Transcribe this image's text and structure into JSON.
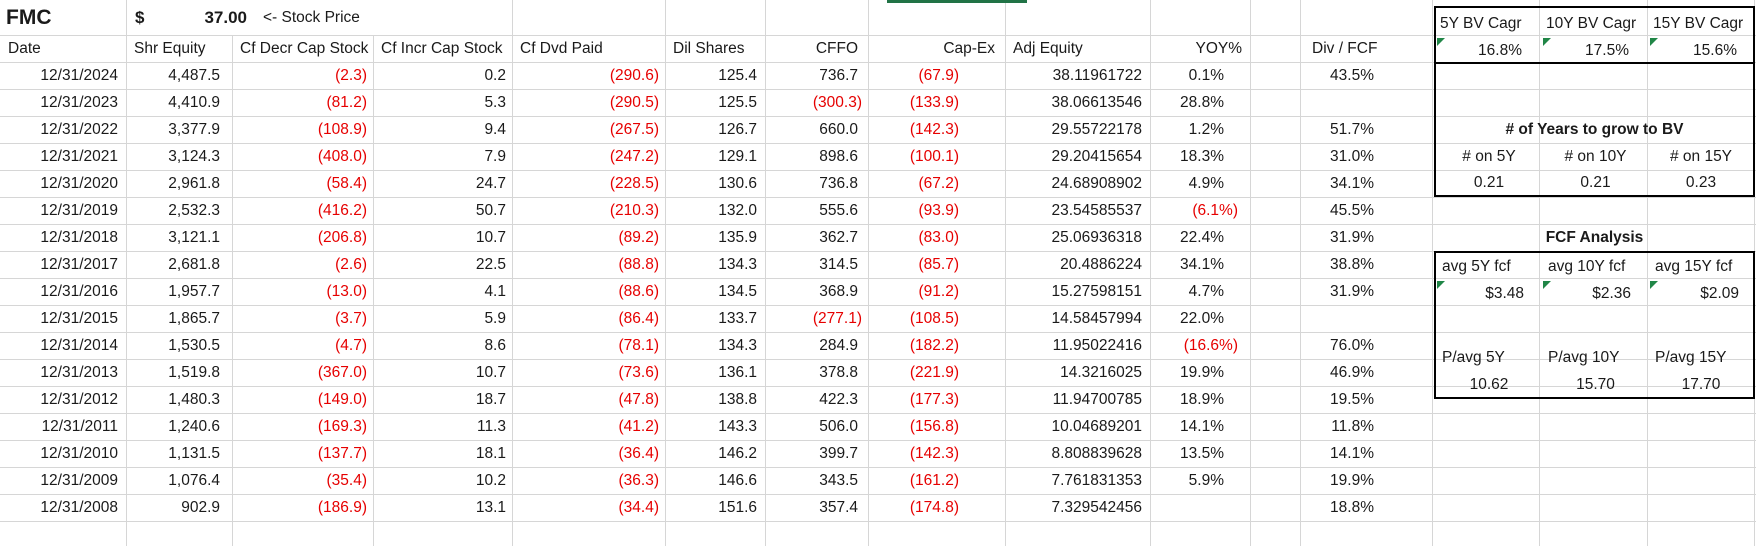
{
  "price_row": {
    "ticker": "FMC",
    "currency_symbol": "$",
    "price": "37.00",
    "note": "<- Stock Price"
  },
  "table": {
    "columns": [
      "Date",
      "Shr Equity",
      "Cf Decr Cap Stock",
      "Cf Incr Cap Stock",
      "Cf Dvd Paid",
      "Dil Shares",
      "CFFO",
      "Cap-Ex",
      "Adj Equity",
      "YOY%",
      "Div / FCF"
    ],
    "rows": [
      [
        "12/31/2024",
        "4,487.5",
        "(2.3)",
        "0.2",
        "(290.6)",
        "125.4",
        "736.7",
        "(67.9)",
        "38.11961722",
        "0.1%",
        "43.5%"
      ],
      [
        "12/31/2023",
        "4,410.9",
        "(81.2)",
        "5.3",
        "(290.5)",
        "125.5",
        "(300.3)",
        "(133.9)",
        "38.06613546",
        "28.8%",
        ""
      ],
      [
        "12/31/2022",
        "3,377.9",
        "(108.9)",
        "9.4",
        "(267.5)",
        "126.7",
        "660.0",
        "(142.3)",
        "29.55722178",
        "1.2%",
        "51.7%"
      ],
      [
        "12/31/2021",
        "3,124.3",
        "(408.0)",
        "7.9",
        "(247.2)",
        "129.1",
        "898.6",
        "(100.1)",
        "29.20415654",
        "18.3%",
        "31.0%"
      ],
      [
        "12/31/2020",
        "2,961.8",
        "(58.4)",
        "24.7",
        "(228.5)",
        "130.6",
        "736.8",
        "(67.2)",
        "24.68908902",
        "4.9%",
        "34.1%"
      ],
      [
        "12/31/2019",
        "2,532.3",
        "(416.2)",
        "50.7",
        "(210.3)",
        "132.0",
        "555.6",
        "(93.9)",
        "23.54585537",
        "(6.1%)",
        "45.5%"
      ],
      [
        "12/31/2018",
        "3,121.1",
        "(206.8)",
        "10.7",
        "(89.2)",
        "135.9",
        "362.7",
        "(83.0)",
        "25.06936318",
        "22.4%",
        "31.9%"
      ],
      [
        "12/31/2017",
        "2,681.8",
        "(2.6)",
        "22.5",
        "(88.8)",
        "134.3",
        "314.5",
        "(85.7)",
        "20.4886224",
        "34.1%",
        "38.8%"
      ],
      [
        "12/31/2016",
        "1,957.7",
        "(13.0)",
        "4.1",
        "(88.6)",
        "134.5",
        "368.9",
        "(91.2)",
        "15.27598151",
        "4.7%",
        "31.9%"
      ],
      [
        "12/31/2015",
        "1,865.7",
        "(3.7)",
        "5.9",
        "(86.4)",
        "133.7",
        "(277.1)",
        "(108.5)",
        "14.58457994",
        "22.0%",
        ""
      ],
      [
        "12/31/2014",
        "1,530.5",
        "(4.7)",
        "8.6",
        "(78.1)",
        "134.3",
        "284.9",
        "(182.2)",
        "11.95022416",
        "(16.6%)",
        "76.0%"
      ],
      [
        "12/31/2013",
        "1,519.8",
        "(367.0)",
        "10.7",
        "(73.6)",
        "136.1",
        "378.8",
        "(221.9)",
        "14.3216025",
        "19.9%",
        "46.9%"
      ],
      [
        "12/31/2012",
        "1,480.3",
        "(149.0)",
        "18.7",
        "(47.8)",
        "138.8",
        "422.3",
        "(177.3)",
        "11.94700785",
        "18.9%",
        "19.5%"
      ],
      [
        "12/31/2011",
        "1,240.6",
        "(169.3)",
        "11.3",
        "(41.2)",
        "143.3",
        "506.0",
        "(156.8)",
        "10.04689201",
        "14.1%",
        "11.8%"
      ],
      [
        "12/31/2010",
        "1,131.5",
        "(137.7)",
        "18.1",
        "(36.4)",
        "146.2",
        "399.7",
        "(142.3)",
        "8.808839628",
        "13.5%",
        "14.1%"
      ],
      [
        "12/31/2009",
        "1,076.4",
        "(35.4)",
        "10.2",
        "(36.3)",
        "146.6",
        "343.5",
        "(161.2)",
        "7.761831353",
        "5.9%",
        "19.9%"
      ],
      [
        "12/31/2008",
        "902.9",
        "(186.9)",
        "13.1",
        "(34.4)",
        "151.6",
        "357.4",
        "(174.8)",
        "7.329542456",
        "",
        "18.8%"
      ]
    ]
  },
  "bv_cagr": {
    "headers": [
      "5Y BV Cagr",
      "10Y BV Cagr",
      "15Y BV Cagr"
    ],
    "values": [
      "16.8%",
      "17.5%",
      "15.6%"
    ]
  },
  "years_to_bv": {
    "title": "# of Years to grow to BV",
    "headers": [
      "# on 5Y",
      "# on 10Y",
      "# on 15Y"
    ],
    "values": [
      "0.21",
      "0.21",
      "0.23"
    ]
  },
  "fcf_analysis": {
    "title": "FCF Analysis",
    "avg_headers": [
      "avg 5Y fcf",
      "avg 10Y fcf",
      "avg 15Y fcf"
    ],
    "avg_values": [
      "$3.48",
      "$2.36",
      "$2.09"
    ],
    "p_headers": [
      "P/avg 5Y",
      "P/avg 10Y",
      "P/avg 15Y"
    ],
    "p_values": [
      "10.62",
      "15.70",
      "17.70"
    ]
  },
  "colors": {
    "negative_text": "#e60000",
    "selection_green": "#217346",
    "indicator_green": "#208647"
  }
}
